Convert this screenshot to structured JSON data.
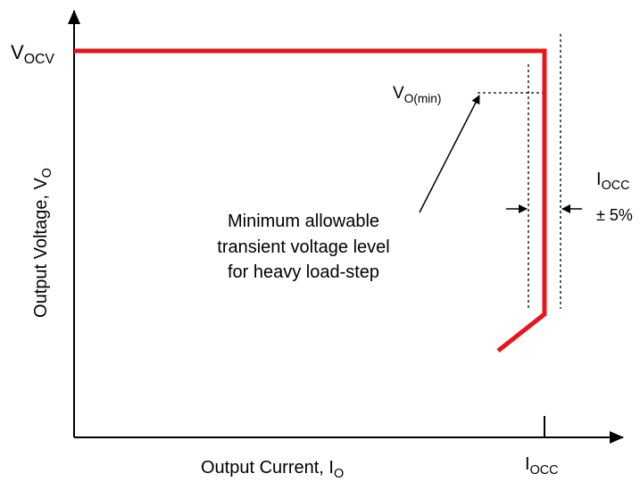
{
  "y_axis_label": {
    "text": "Output Voltage,  V",
    "sub": "O"
  },
  "x_axis_label": {
    "text": "Output Current,  I",
    "sub": "O"
  },
  "v_ocv": {
    "text": "V",
    "sub": "OCV"
  },
  "v_o_min": {
    "text": "V",
    "sub": "O(min)"
  },
  "annotation": [
    "Minimum allowable",
    "transient voltage level",
    "for heavy load-step"
  ],
  "i_occ_band": {
    "text": "I",
    "sub": "OCC",
    "tolerance": "± 5%"
  },
  "x_tick": {
    "text": "I",
    "sub": "OCC"
  }
}
